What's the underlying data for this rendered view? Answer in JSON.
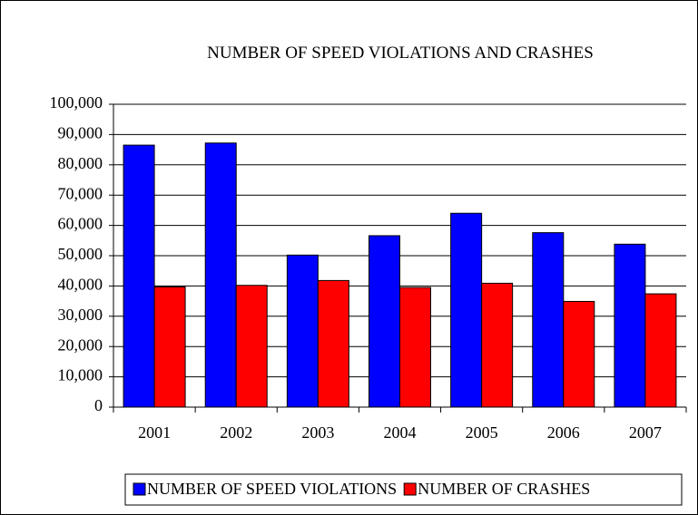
{
  "chart_data": {
    "type": "bar",
    "title": "NUMBER OF SPEED VIOLATIONS AND CRASHES",
    "categories": [
      "2001",
      "2002",
      "2003",
      "2004",
      "2005",
      "2006",
      "2007"
    ],
    "series": [
      {
        "name": "NUMBER OF SPEED VIOLATIONS",
        "color": "#0000ff",
        "values": [
          86500,
          87200,
          50200,
          56600,
          64000,
          57600,
          53800
        ]
      },
      {
        "name": "NUMBER OF CRASHES",
        "color": "#ff0000",
        "values": [
          39700,
          40200,
          41800,
          39500,
          40900,
          34900,
          37400
        ]
      }
    ],
    "ylim": [
      0,
      100000
    ],
    "yticks": [
      0,
      {
        "value": 10000,
        "label": "10,000"
      },
      {
        "value": 20000,
        "label": "20,000"
      },
      {
        "value": 30000,
        "label": "30,000"
      },
      {
        "value": 40000,
        "label": "40,000"
      },
      {
        "value": 50000,
        "label": "50,000"
      },
      {
        "value": 60000,
        "label": "60,000"
      },
      {
        "value": 70000,
        "label": "70,000"
      },
      {
        "value": 80000,
        "label": "80,000"
      },
      {
        "value": 90000,
        "label": "90,000"
      },
      {
        "value": 100000,
        "label": "100,000"
      }
    ],
    "grid": true,
    "legend": "bottom"
  }
}
